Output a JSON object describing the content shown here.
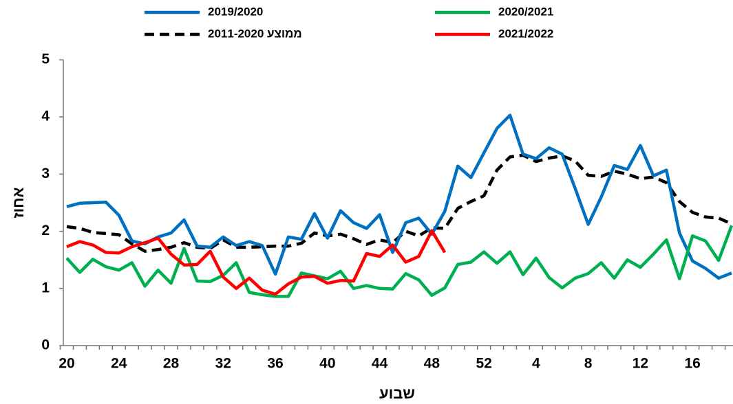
{
  "chart_data": {
    "type": "line",
    "y_axis_title": "אחוז",
    "x_axis_title": "שבוע",
    "categories": [
      "20",
      null,
      null,
      null,
      "24",
      null,
      null,
      null,
      "28",
      null,
      null,
      null,
      "32",
      null,
      null,
      null,
      "36",
      null,
      null,
      null,
      "40",
      null,
      null,
      null,
      "44",
      null,
      null,
      null,
      "48",
      null,
      null,
      null,
      "52",
      null,
      null,
      null,
      "4",
      null,
      null,
      null,
      "8",
      null,
      null,
      null,
      "12",
      null,
      null,
      null,
      "16",
      null,
      null,
      null
    ],
    "ylim": [
      0,
      5
    ],
    "yticks": [
      0,
      1,
      2,
      3,
      4,
      5
    ],
    "grid": false,
    "series": [
      {
        "name": "2019/2020",
        "color": "#0070c0",
        "dash": false,
        "values": [
          2.43,
          2.49,
          2.5,
          2.51,
          2.28,
          1.83,
          1.78,
          1.9,
          1.97,
          2.2,
          1.74,
          1.72,
          1.9,
          1.75,
          1.82,
          1.75,
          1.25,
          1.9,
          1.86,
          2.31,
          1.88,
          2.36,
          2.15,
          2.05,
          2.29,
          1.63,
          2.15,
          2.23,
          1.95,
          2.35,
          3.14,
          2.94,
          3.37,
          3.8,
          4.03,
          3.35,
          3.27,
          3.46,
          3.35,
          2.75,
          2.12,
          2.6,
          3.15,
          3.08,
          3.5,
          2.97,
          3.07,
          1.97,
          1.48,
          1.35,
          1.18,
          1.27
        ]
      },
      {
        "name": "2020/2021",
        "color": "#00b050",
        "dash": false,
        "values": [
          1.53,
          1.28,
          1.51,
          1.38,
          1.32,
          1.45,
          1.04,
          1.32,
          1.09,
          1.7,
          1.13,
          1.12,
          1.23,
          1.45,
          0.93,
          0.89,
          0.86,
          0.86,
          1.27,
          1.22,
          1.17,
          1.3,
          1.0,
          1.05,
          1.0,
          0.99,
          1.26,
          1.15,
          0.88,
          1.01,
          1.42,
          1.46,
          1.64,
          1.44,
          1.64,
          1.24,
          1.53,
          1.19,
          1.01,
          1.18,
          1.26,
          1.45,
          1.18,
          1.5,
          1.37,
          1.6,
          1.85,
          1.17,
          1.92,
          1.83,
          1.49,
          2.1
        ]
      },
      {
        "name": "ממוצע 2011-2020",
        "color": "#000000",
        "dash": true,
        "values": [
          2.08,
          2.05,
          1.98,
          1.96,
          1.94,
          1.78,
          1.65,
          1.68,
          1.72,
          1.8,
          1.72,
          1.7,
          1.85,
          1.72,
          1.72,
          1.73,
          1.74,
          1.74,
          1.79,
          1.97,
          1.92,
          1.95,
          1.87,
          1.77,
          1.85,
          1.8,
          2.0,
          1.92,
          2.06,
          2.05,
          2.4,
          2.52,
          2.62,
          3.07,
          3.3,
          3.33,
          3.22,
          3.28,
          3.32,
          3.23,
          2.98,
          2.96,
          3.05,
          3.0,
          2.92,
          2.95,
          2.85,
          2.52,
          2.33,
          2.25,
          2.23,
          2.13
        ]
      },
      {
        "name": "2021/2022",
        "color": "#ff0000",
        "dash": false,
        "values": [
          1.73,
          1.82,
          1.76,
          1.63,
          1.62,
          1.73,
          1.8,
          1.88,
          1.6,
          1.41,
          1.42,
          1.65,
          1.2,
          1.0,
          1.18,
          0.97,
          0.9,
          1.08,
          1.2,
          1.21,
          1.09,
          1.14,
          1.13,
          1.61,
          1.56,
          1.76,
          1.46,
          1.56,
          2.01,
          1.63,
          null,
          null,
          null,
          null,
          null,
          null,
          null,
          null,
          null,
          null,
          null,
          null,
          null,
          null,
          null,
          null,
          null,
          null,
          null,
          null,
          null,
          null
        ]
      }
    ]
  }
}
